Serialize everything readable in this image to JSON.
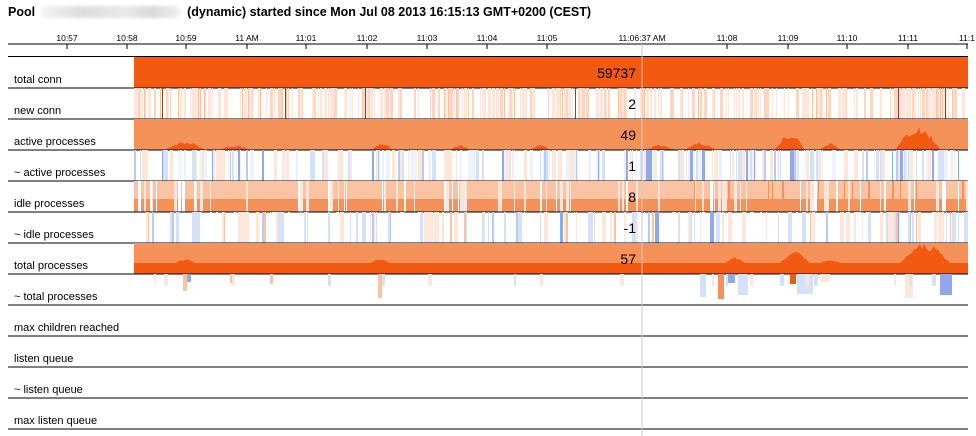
{
  "header": {
    "title_prefix": "Pool",
    "title_suffix": "(dynamic) started since Mon Jul 08 2013 16:15:13 GMT+0200 (CEST)"
  },
  "colors": {
    "orange_dark": "#f25a12",
    "orange_mid": "#f4925a",
    "orange_light": "#f9c3a4",
    "orange_faint": "#fde6da",
    "blue_mid": "#8fa9ea",
    "blue_light": "#d5e1f7",
    "cursor": "#cccccc",
    "spike": "#7a4a30"
  },
  "chart_data": {
    "type": "heatmap",
    "time_axis": {
      "ticks": [
        "10:57",
        "10:58",
        "10:59",
        "11 AM",
        "11:01",
        "11:02",
        "11:03",
        "11:04",
        "11:05",
        "11:06:37 AM",
        "11:08",
        "11:09",
        "11:10",
        "11:11",
        "11:1"
      ],
      "cursor": "11:06:37 AM"
    },
    "rows": [
      {
        "key": "total_conn",
        "label": "total conn",
        "value": "59737"
      },
      {
        "key": "new_conn",
        "label": "new conn",
        "value": "2"
      },
      {
        "key": "active_processes",
        "label": "active processes",
        "value": "49"
      },
      {
        "key": "d_active_processes",
        "label": "~ active processes",
        "value": "1"
      },
      {
        "key": "idle_processes",
        "label": "idle processes",
        "value": "8"
      },
      {
        "key": "d_idle_processes",
        "label": "~ idle processes",
        "value": "-1"
      },
      {
        "key": "total_processes",
        "label": "total processes",
        "value": "57"
      },
      {
        "key": "d_total_processes",
        "label": "~ total processes",
        "value": ""
      },
      {
        "key": "max_children",
        "label": "max children reached",
        "value": ""
      },
      {
        "key": "listen_queue",
        "label": "listen queue",
        "value": ""
      },
      {
        "key": "d_listen_queue",
        "label": "~ listen queue",
        "value": ""
      },
      {
        "key": "max_listen_queue",
        "label": "max listen queue",
        "value": ""
      }
    ]
  }
}
